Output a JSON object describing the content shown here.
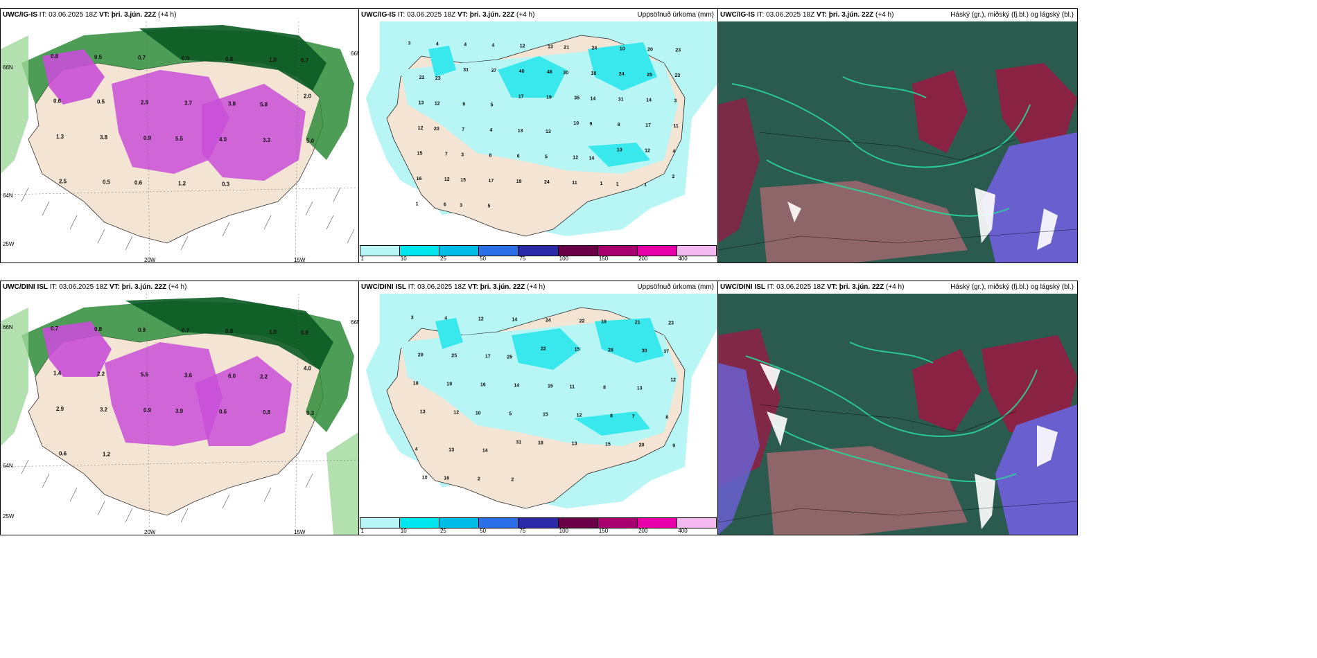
{
  "colors": {
    "land": "#f3e4d3",
    "sea_light": "#b8f6f6",
    "cyan": "#38e8ec",
    "dark_green": "#0a5a22",
    "green": "#2f8c3a",
    "light_green": "#9fd89a",
    "magenta": "#c94fd8",
    "cloud_dark": "#2b5a4f",
    "cloud_red": "#8a2244",
    "cloud_blue": "#6a5fcf"
  },
  "panels": {
    "wind_top": {
      "model": "UWC/IG-IS",
      "it_text": "IT: 03.06.2025 18Z",
      "vt_label": "VT:",
      "vt_value": "þri. 3.jún. 22Z",
      "step": "(+4 h)",
      "lat_lbls": [
        "66N",
        "64N",
        "25W"
      ],
      "lon_lbls": [
        "20W",
        "15W"
      ],
      "side_lbl": "66N"
    },
    "precip_top": {
      "model": "UWC/IG-IS",
      "it_text": "IT: 03.06.2025 18Z",
      "vt_label": "VT:",
      "vt_value": "þri. 3.jún. 22Z",
      "step": "(+4 h)",
      "title_right": "Uppsöfnuð úrkoma (mm)"
    },
    "cloud_top": {
      "model": "UWC/IG-IS",
      "it_text": "IT: 03.06.2025 18Z",
      "vt_label": "VT:",
      "vt_value": "þri. 3.jún. 22Z",
      "step": "(+4 h)",
      "title_right": "Háský (gr.), miðský (fj.bl.) og lágský (bl.)"
    },
    "wind_bot": {
      "model": "UWC/DINI ISL",
      "it_text": "IT: 03.06.2025 18Z",
      "vt_label": "VT:",
      "vt_value": "þri. 3.jún. 22Z",
      "step": "(+4 h)",
      "lat_lbls": [
        "66N",
        "64N",
        "25W"
      ],
      "lon_lbls": [
        "20W",
        "15W"
      ],
      "side_lbl": "66N"
    },
    "precip_bot": {
      "model": "UWC/DINI ISL",
      "it_text": "IT: 03.06.2025 18Z",
      "vt_label": "VT:",
      "vt_value": "þri. 3.jún. 22Z",
      "step": "(+4 h)",
      "title_right": "Uppsöfnuð úrkoma (mm)"
    },
    "cloud_bot": {
      "model": "UWC/DINI ISL",
      "it_text": "IT: 03.06.2025 18Z",
      "vt_label": "VT:",
      "vt_value": "þri. 3.jún. 22Z",
      "step": "(+4 h)",
      "title_right": "Háský (gr.), miðský (fj.bl.) og lágský (bl.)"
    }
  },
  "precip_scale": {
    "colors": [
      "#b8f6f6",
      "#00e6ee",
      "#00bde8",
      "#2a6fe8",
      "#2a2aa8",
      "#6a0045",
      "#a8006e",
      "#e600a8",
      "#f4b8f0"
    ],
    "ticks": [
      "1",
      "10",
      "25",
      "50",
      "75",
      "100",
      "150",
      "200",
      "400"
    ]
  },
  "precip_top_values": [
    "3",
    "4",
    "4",
    "4",
    "12",
    "13",
    "21",
    "24",
    "10",
    "20",
    "23",
    "22",
    "23",
    "31",
    "37",
    "40",
    "48",
    "30",
    "18",
    "24",
    "25",
    "23",
    "13",
    "12",
    "9",
    "5",
    "17",
    "19",
    "35",
    "14",
    "31",
    "14",
    "3",
    "12",
    "20",
    "7",
    "4",
    "13",
    "13",
    "10",
    "9",
    "8",
    "17",
    "11",
    "15",
    "7",
    "3",
    "8",
    "6",
    "5",
    "12",
    "14",
    "10",
    "12",
    "4",
    "16",
    "12",
    "15",
    "17",
    "19",
    "24",
    "11",
    "1",
    "1",
    "1",
    "2",
    "1",
    "6",
    "3",
    "5"
  ],
  "precip_bot_values": [
    "3",
    "4",
    "12",
    "14",
    "24",
    "22",
    "19",
    "21",
    "23",
    "29",
    "25",
    "17",
    "25",
    "22",
    "15",
    "28",
    "30",
    "37",
    "18",
    "19",
    "16",
    "14",
    "15",
    "11",
    "8",
    "13",
    "12",
    "13",
    "12",
    "10",
    "5",
    "15",
    "12",
    "8",
    "7",
    "8",
    "4",
    "13",
    "14",
    "31",
    "18",
    "13",
    "15",
    "20",
    "9",
    "10",
    "16",
    "2",
    "2"
  ],
  "wind_top_values": [
    "0.8",
    "0.5",
    "0.7",
    "0.9",
    "0.8",
    "1.0",
    "0.7",
    "0.6",
    "0.5",
    "2.9",
    "3.7",
    "3.8",
    "5.8",
    "2.0",
    "1.3",
    "3.8",
    "0.9",
    "5.5",
    "4.0",
    "3.3",
    "5.0",
    "2.5",
    "0.5",
    "0.6",
    "1.2",
    "0.3"
  ],
  "wind_bot_values": [
    "0.7",
    "0.8",
    "0.9",
    "0.7",
    "0.8",
    "1.0",
    "0.8",
    "1.4",
    "2.2",
    "5.5",
    "3.6",
    "6.0",
    "2.2",
    "4.0",
    "2.9",
    "3.2",
    "0.9",
    "3.9",
    "0.6",
    "0.8",
    "0.3",
    "0.6",
    "1.2"
  ]
}
